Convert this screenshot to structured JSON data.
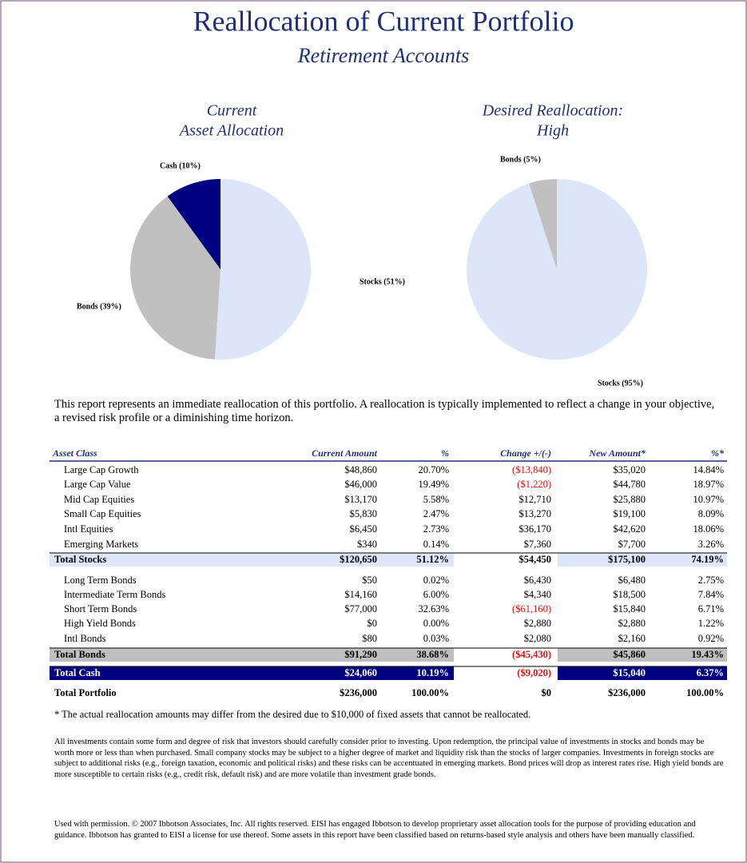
{
  "header": {
    "title": "Reallocation of Current Portfolio",
    "subtitle": "Retirement Accounts"
  },
  "chart_data": [
    {
      "type": "pie",
      "title_lines": [
        "Current",
        "Asset Allocation"
      ],
      "values": [
        51,
        39,
        10
      ],
      "value_labels": [
        "Stocks (51%)",
        "Bonds (39%)",
        "Cash (10%)"
      ],
      "colors": [
        "#dce6f8",
        "#c0c0c0",
        "#000080"
      ]
    },
    {
      "type": "pie",
      "title_lines": [
        "Desired Reallocation:",
        "High"
      ],
      "values": [
        95,
        5
      ],
      "value_labels": [
        "Stocks (95%)",
        "Bonds (5%)"
      ],
      "colors": [
        "#dce6f8",
        "#c0c0c0"
      ]
    }
  ],
  "intro": "This report represents an immediate reallocation of this portfolio.  A reallocation is typically implemented to reflect a change in your objective, a revised risk profile or a diminishing time horizon.",
  "table": {
    "header": [
      "Asset Class",
      "Current Amount",
      "%",
      "Change +/(-)",
      "New Amount*",
      "%*"
    ],
    "rows": [
      [
        "Large Cap Growth",
        "$48,860",
        "20.70%",
        "($13,840)",
        "$35,020",
        "14.84%"
      ],
      [
        "Large Cap Value",
        "$46,000",
        "19.49%",
        "($1,220)",
        "$44,780",
        "18.97%"
      ],
      [
        "Mid Cap Equities",
        "$13,170",
        "5.58%",
        "$12,710",
        "$25,880",
        "10.97%"
      ],
      [
        "Small Cap Equities",
        "$5,830",
        "2.47%",
        "$13,270",
        "$19,100",
        "8.09%"
      ],
      [
        "Intl Equities",
        "$6,450",
        "2.73%",
        "$36,170",
        "$42,620",
        "18.06%"
      ],
      [
        "Emerging Markets",
        "$340",
        "0.14%",
        "$7,360",
        "$7,700",
        "3.26%"
      ],
      [
        "Total Stocks",
        "$120,650",
        "51.12%",
        "$54,450",
        "$175,100",
        "74.19%"
      ],
      [
        "Long Term Bonds",
        "$50",
        "0.02%",
        "$6,430",
        "$6,480",
        "2.75%"
      ],
      [
        "Intermediate Term Bonds",
        "$14,160",
        "6.00%",
        "$4,340",
        "$18,500",
        "7.84%"
      ],
      [
        "Short Term Bonds",
        "$77,000",
        "32.63%",
        "($61,160)",
        "$15,840",
        "6.71%"
      ],
      [
        "High Yield Bonds",
        "$0",
        "0.00%",
        "$2,880",
        "$2,880",
        "1.22%"
      ],
      [
        "Intl Bonds",
        "$80",
        "0.03%",
        "$2,080",
        "$2,160",
        "0.92%"
      ],
      [
        "Total Bonds",
        "$91,290",
        "38.68%",
        "($45,430)",
        "$45,860",
        "19.43%"
      ],
      [
        "Total Cash",
        "$24,060",
        "10.19%",
        "($9,020)",
        "$15,040",
        "6.37%"
      ],
      [
        "Total Portfolio",
        "$236,000",
        "100.00%",
        "$0",
        "$236,000",
        "100.00%"
      ]
    ]
  },
  "footnote": "* The actual reallocation amounts may differ from the desired due to $10,000 of fixed assets that cannot be reallocated.",
  "disclaimer": "All investments contain some form and degree of risk that investors should carefully consider prior to investing. Upon redemption, the principal value of investments in stocks and bonds may be worth more or less than when purchased. Small company stocks may be subject to a higher degree of market and liquidity risk than the stocks of larger companies. Investments in foreign stocks are subject to additional risks (e.g., foreign taxation, economic and political risks) and these risks can be accentuated in emerging markets.  Bond prices will drop as interest rates rise.  High yield bonds are more susceptible to certain risks (e.g., credit risk, default risk) and are more volatile than investment grade bonds.",
  "permission": "Used with permission. © 2007 Ibbotson Associates, Inc. All rights reserved.  EISI has engaged Ibbotson to develop proprietary asset allocation tools for the purpose of providing education and guidance.  Ibbotson has granted to EISI a license for use thereof. Some assets in this report have been classified based on returns-based style analysis and others have been manually classified."
}
